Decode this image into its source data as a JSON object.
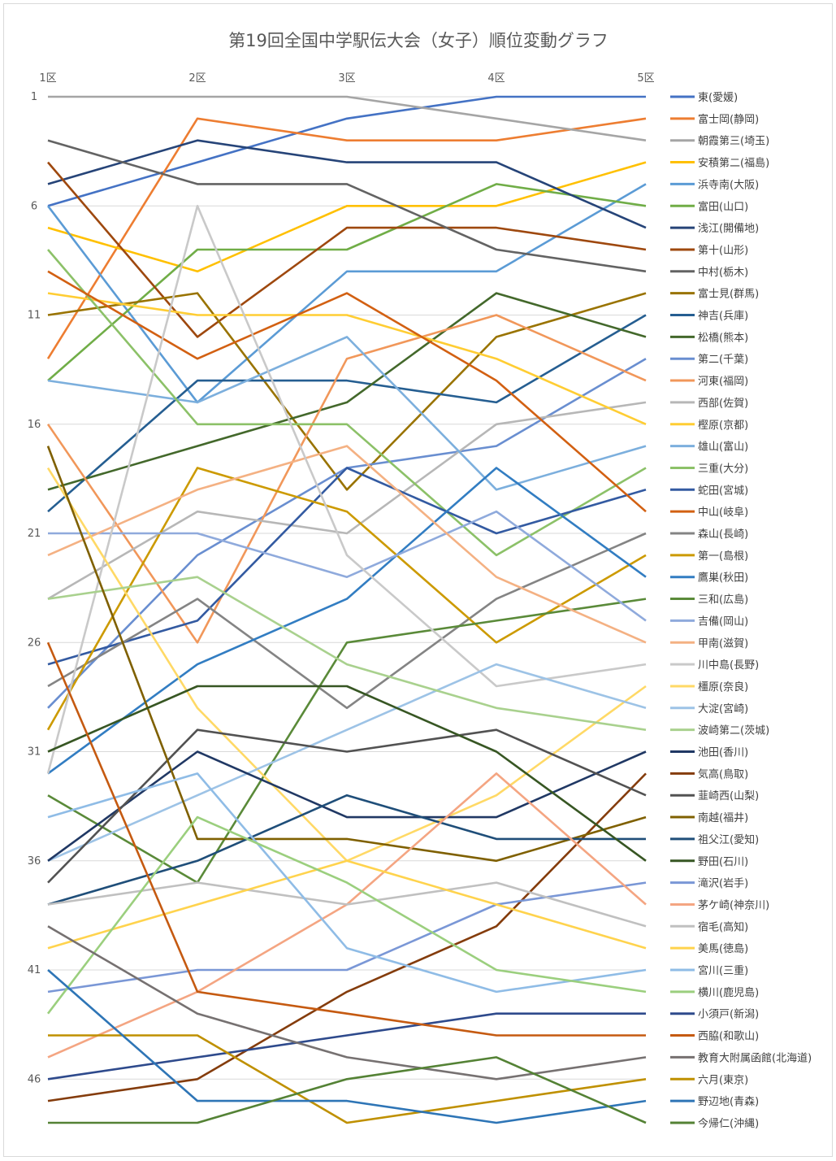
{
  "chart_data": {
    "type": "line",
    "title": "第19回全国中学駅伝大会（女子）順位変動グラフ",
    "categories": [
      "1区",
      "2区",
      "3区",
      "4区",
      "5区"
    ],
    "y_tick_labels": [
      "1",
      "6",
      "11",
      "16",
      "21",
      "26",
      "31",
      "36",
      "41",
      "46"
    ],
    "ylim": [
      1,
      48
    ],
    "y_reversed": true,
    "grid": true,
    "legend_position": "right",
    "series": [
      {
        "name": "東(愛媛)",
        "color": "#4472c4",
        "values": [
          6,
          4,
          2,
          1,
          1
        ]
      },
      {
        "name": "富士岡(静岡)",
        "color": "#ed7d31",
        "values": [
          13,
          2,
          3,
          3,
          2
        ]
      },
      {
        "name": "朝霞第三(埼玉)",
        "color": "#a5a5a5",
        "values": [
          1,
          1,
          1,
          2,
          3
        ]
      },
      {
        "name": "安積第二(福島)",
        "color": "#ffc000",
        "values": [
          7,
          9,
          6,
          6,
          4
        ]
      },
      {
        "name": "浜寺南(大阪)",
        "color": "#5b9bd5",
        "values": [
          6,
          15,
          9,
          9,
          5
        ]
      },
      {
        "name": "富田(山口)",
        "color": "#70ad47",
        "values": [
          14,
          8,
          8,
          5,
          6
        ]
      },
      {
        "name": "浅江(開備地)",
        "color": "#264478",
        "values": [
          5,
          3,
          4,
          4,
          7
        ]
      },
      {
        "name": "第十(山形)",
        "color": "#9e480e",
        "values": [
          4,
          12,
          7,
          7,
          8
        ]
      },
      {
        "name": "中村(栃木)",
        "color": "#636363",
        "values": [
          3,
          5,
          5,
          8,
          9
        ]
      },
      {
        "name": "富士見(群馬)",
        "color": "#997300",
        "values": [
          11,
          10,
          19,
          12,
          10
        ]
      },
      {
        "name": "神吉(兵庫)",
        "color": "#255e91",
        "values": [
          20,
          14,
          14,
          15,
          11
        ]
      },
      {
        "name": "松橋(熊本)",
        "color": "#43682b",
        "values": [
          19,
          17,
          15,
          10,
          12
        ]
      },
      {
        "name": "第二(千葉)",
        "color": "#698ed0",
        "values": [
          29,
          22,
          18,
          17,
          13
        ]
      },
      {
        "name": "河東(福岡)",
        "color": "#f1975a",
        "values": [
          16,
          26,
          13,
          11,
          14
        ]
      },
      {
        "name": "西部(佐賀)",
        "color": "#b7b7b7",
        "values": [
          24,
          20,
          21,
          16,
          15
        ]
      },
      {
        "name": "樫原(京都)",
        "color": "#ffcd33",
        "values": [
          10,
          11,
          11,
          13,
          16
        ]
      },
      {
        "name": "雄山(富山)",
        "color": "#7cafdd",
        "values": [
          14,
          15,
          12,
          19,
          17
        ]
      },
      {
        "name": "三重(大分)",
        "color": "#8cc168",
        "values": [
          8,
          16,
          16,
          22,
          18
        ]
      },
      {
        "name": "蛇田(宮城)",
        "color": "#335aa1",
        "values": [
          27,
          25,
          18,
          21,
          19
        ]
      },
      {
        "name": "中山(岐阜)",
        "color": "#d26012",
        "values": [
          9,
          13,
          10,
          14,
          20
        ]
      },
      {
        "name": "森山(長崎)",
        "color": "#848484",
        "values": [
          28,
          24,
          29,
          24,
          21
        ]
      },
      {
        "name": "第一(島根)",
        "color": "#cc9a00",
        "values": [
          30,
          18,
          20,
          26,
          22
        ]
      },
      {
        "name": "鷹巣(秋田)",
        "color": "#327dc2",
        "values": [
          32,
          27,
          24,
          18,
          23
        ]
      },
      {
        "name": "三和(広島)",
        "color": "#5a8a39",
        "values": [
          33,
          37,
          26,
          25,
          24
        ]
      },
      {
        "name": "吉備(岡山)",
        "color": "#8faadc",
        "values": [
          21,
          21,
          23,
          20,
          25
        ]
      },
      {
        "name": "甲南(滋賀)",
        "color": "#f4b183",
        "values": [
          22,
          19,
          17,
          23,
          26
        ]
      },
      {
        "name": "川中島(長野)",
        "color": "#c9c9c9",
        "values": [
          32,
          6,
          22,
          28,
          27
        ]
      },
      {
        "name": "橿原(奈良)",
        "color": "#ffd966",
        "values": [
          18,
          29,
          36,
          33,
          28
        ]
      },
      {
        "name": "大淀(宮崎)",
        "color": "#9dc3e6",
        "values": [
          36,
          33,
          30,
          27,
          29
        ]
      },
      {
        "name": "波崎第二(茨城)",
        "color": "#a9d18e",
        "values": [
          24,
          23,
          27,
          29,
          30
        ]
      },
      {
        "name": "池田(香川)",
        "color": "#203864",
        "values": [
          36,
          31,
          34,
          34,
          31
        ]
      },
      {
        "name": "気高(鳥取)",
        "color": "#843c0c",
        "values": [
          47,
          46,
          42,
          39,
          32
        ]
      },
      {
        "name": "韮崎西(山梨)",
        "color": "#525252",
        "values": [
          37,
          30,
          31,
          30,
          33
        ]
      },
      {
        "name": "南越(福井)",
        "color": "#7f6000",
        "values": [
          17,
          35,
          35,
          36,
          34
        ]
      },
      {
        "name": "祖父江(愛知)",
        "color": "#1f4e79",
        "values": [
          38,
          36,
          33,
          35,
          35
        ]
      },
      {
        "name": "野田(石川)",
        "color": "#375623",
        "values": [
          31,
          28,
          28,
          31,
          36
        ]
      },
      {
        "name": "滝沢(岩手)",
        "color": "#7a97d6",
        "values": [
          42,
          41,
          41,
          38,
          37
        ]
      },
      {
        "name": "茅ケ崎(神奈川)",
        "color": "#f4a582",
        "values": [
          45,
          42,
          38,
          32,
          38
        ]
      },
      {
        "name": "宿毛(高知)",
        "color": "#c0c0c0",
        "values": [
          38,
          37,
          38,
          37,
          39
        ]
      },
      {
        "name": "美馬(徳島)",
        "color": "#ffd34d",
        "values": [
          40,
          38,
          36,
          38,
          40
        ]
      },
      {
        "name": "宮川(三重)",
        "color": "#8fbce6",
        "values": [
          34,
          32,
          40,
          42,
          41
        ]
      },
      {
        "name": "横川(鹿児島)",
        "color": "#9bcf7e",
        "values": [
          43,
          34,
          37,
          41,
          42
        ]
      },
      {
        "name": "小須戸(新潟)",
        "color": "#2e4a8c",
        "values": [
          46,
          45,
          44,
          43,
          43
        ]
      },
      {
        "name": "西脇(和歌山)",
        "color": "#c55a11",
        "values": [
          26,
          42,
          43,
          44,
          44
        ]
      },
      {
        "name": "教育大附属函館(北海道)",
        "color": "#767171",
        "values": [
          39,
          43,
          45,
          46,
          45
        ]
      },
      {
        "name": "六月(東京)",
        "color": "#bf9000",
        "values": [
          44,
          44,
          48,
          47,
          46
        ]
      },
      {
        "name": "野辺地(青森)",
        "color": "#2e75b6",
        "values": [
          41,
          47,
          47,
          48,
          47
        ]
      },
      {
        "name": "今帰仁(沖縄)",
        "color": "#548235",
        "values": [
          48,
          48,
          46,
          45,
          48
        ]
      }
    ]
  }
}
